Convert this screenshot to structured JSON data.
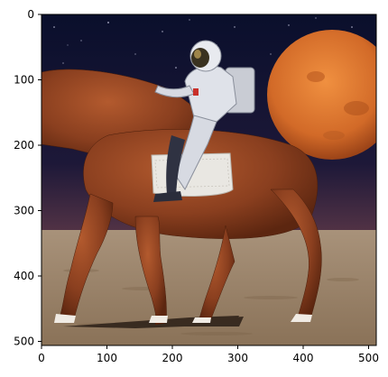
{
  "axes": {
    "x_ticks": [
      "0",
      "100",
      "200",
      "300",
      "400",
      "500"
    ],
    "y_ticks": [
      "0",
      "100",
      "200",
      "300",
      "400",
      "500"
    ],
    "xlim": [
      0,
      512
    ],
    "ylim": [
      512,
      0
    ]
  },
  "scene": {
    "sky_colors": [
      "#0b1030",
      "#2a1c3e",
      "#6a4048",
      "#8a6a5a"
    ],
    "planet_color": "#d9742e",
    "horse_color": "#8a3f1f",
    "ground_color": "#a38d72"
  }
}
